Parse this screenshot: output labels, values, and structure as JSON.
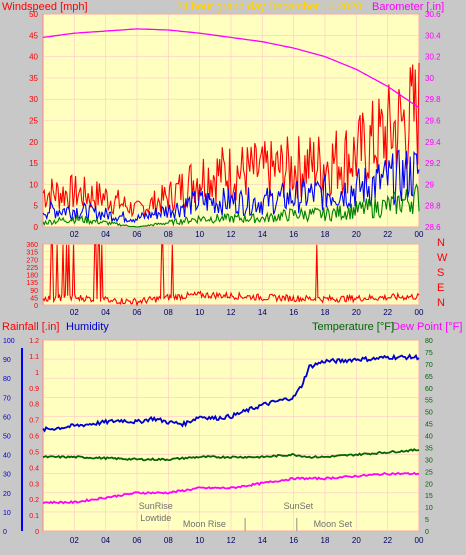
{
  "header": {
    "title": "24 hour graph day   December 16 2020",
    "left_label": "Windspeed [mph]",
    "right_label": "Barometer [.in]"
  },
  "colors": {
    "background": "#c8c8c8",
    "plot_bg": "#ffffc0",
    "wind_red": "#ff0000",
    "wind_blue": "#0000ff",
    "wind_green": "#008000",
    "barometer": "#ff00ff",
    "humidity": "#0000cc",
    "temperature": "#006600",
    "dewpoint": "#ff00ff",
    "title_yellow": "#ffd000"
  },
  "chart_data": [
    {
      "type": "line",
      "name": "wind_and_barometer",
      "x_ticks": [
        "02",
        "04",
        "06",
        "08",
        "10",
        "12",
        "14",
        "16",
        "18",
        "20",
        "22",
        "00"
      ],
      "left_axis": {
        "label": "Windspeed [mph]",
        "ylim": [
          0,
          50
        ],
        "ticks": [
          0,
          5,
          10,
          15,
          20,
          25,
          30,
          35,
          40,
          45,
          50
        ]
      },
      "right_axis": {
        "label": "Barometer [.in]",
        "ylim": [
          28.6,
          30.6
        ],
        "ticks": [
          "28.6",
          "28.8",
          "29",
          "29.2",
          "29.4",
          "29.6",
          "29.8",
          "30",
          "30.2",
          "30.4",
          "30.6"
        ]
      },
      "series": [
        {
          "kind": "wind_gust",
          "color": "#ff0000",
          "hours": [
            0,
            2,
            4,
            6,
            8,
            10,
            12,
            14,
            16,
            18,
            20,
            22,
            24
          ],
          "values": [
            8,
            8,
            7,
            4,
            7,
            12,
            13,
            13,
            14,
            15,
            17,
            22,
            27
          ]
        },
        {
          "kind": "wind_avg",
          "color": "#0000ff",
          "hours": [
            0,
            2,
            4,
            6,
            8,
            10,
            12,
            14,
            16,
            18,
            20,
            22,
            24
          ],
          "values": [
            4,
            4,
            3,
            2,
            4,
            6,
            6,
            6,
            7,
            8,
            9,
            11,
            13
          ]
        },
        {
          "kind": "wind_low",
          "color": "#008000",
          "hours": [
            0,
            2,
            4,
            6,
            8,
            10,
            12,
            14,
            16,
            18,
            20,
            22,
            24
          ],
          "values": [
            1,
            2,
            1,
            0,
            1,
            2,
            2,
            2,
            3,
            3,
            4,
            5,
            7
          ]
        },
        {
          "kind": "barometer",
          "color": "#ff00ff",
          "hours": [
            0,
            2,
            4,
            6,
            8,
            10,
            12,
            14,
            16,
            18,
            20,
            22,
            24
          ],
          "values": [
            30.38,
            30.42,
            30.44,
            30.46,
            30.45,
            30.42,
            30.38,
            30.34,
            30.28,
            30.2,
            30.08,
            29.92,
            29.72
          ]
        }
      ]
    },
    {
      "type": "scatter",
      "name": "wind_direction",
      "x_ticks": [
        "02",
        "04",
        "06",
        "08",
        "10",
        "12",
        "14",
        "16",
        "18",
        "20",
        "22",
        "00"
      ],
      "axis": {
        "ylim": [
          0,
          360
        ],
        "ticks": [
          0,
          45,
          90,
          135,
          180,
          225,
          270,
          315,
          360
        ]
      },
      "compass": [
        "N",
        "W",
        "S",
        "E",
        "N"
      ],
      "series": [
        {
          "kind": "direction",
          "color": "#ff0000",
          "hours": [
            0,
            2,
            4,
            6,
            8,
            10,
            12,
            14,
            16,
            18,
            20,
            22,
            24
          ],
          "values": [
            40,
            45,
            30,
            20,
            45,
            60,
            55,
            45,
            40,
            35,
            40,
            45,
            50
          ]
        }
      ]
    },
    {
      "type": "line",
      "name": "rain_humidity_temperature",
      "x_ticks": [
        "02",
        "04",
        "06",
        "08",
        "10",
        "12",
        "14",
        "16",
        "18",
        "20",
        "22",
        "00"
      ],
      "left_labels": {
        "rain": "Rainfall [.in]",
        "humidity": "Humidity"
      },
      "right_labels": {
        "temperature": "Temperature [°F]",
        "dewpoint": "Dew Point [°F]"
      },
      "rain_axis": {
        "ylim": [
          0,
          1.2
        ],
        "ticks": [
          "0",
          "0.1",
          "0.2",
          "0.3",
          "0.4",
          "0.5",
          "0.6",
          "0.7",
          "0.8",
          "0.9",
          "1",
          "1.1",
          "1.2"
        ]
      },
      "humidity_axis": {
        "ylim": [
          0,
          100
        ],
        "ticks": [
          0,
          10,
          20,
          30,
          40,
          50,
          60,
          70,
          80,
          90,
          100
        ]
      },
      "temp_axis": {
        "ylim": [
          0,
          80
        ],
        "ticks": [
          0,
          5,
          10,
          15,
          20,
          25,
          30,
          35,
          40,
          45,
          50,
          55,
          60,
          65,
          70,
          75,
          80
        ]
      },
      "series": [
        {
          "kind": "humidity",
          "color": "#0000cc",
          "hours": [
            0,
            1,
            2,
            3,
            4,
            5,
            6,
            7,
            8,
            9,
            10,
            11,
            12,
            13,
            14,
            15,
            16,
            16.5,
            17,
            18,
            19,
            20,
            21,
            22,
            23,
            24
          ],
          "values": [
            53,
            54,
            55,
            56,
            57,
            58,
            57,
            59,
            57,
            56,
            60,
            59,
            60,
            63,
            66,
            68,
            70,
            76,
            86,
            89,
            89,
            90,
            90,
            91,
            91,
            91
          ]
        },
        {
          "kind": "temperature",
          "color": "#006600",
          "hours": [
            0,
            2,
            4,
            6,
            8,
            10,
            12,
            14,
            16,
            17,
            18,
            20,
            22,
            24
          ],
          "values": [
            31,
            31,
            30.5,
            30,
            30,
            31,
            31,
            31,
            32,
            31,
            31,
            32,
            33,
            34
          ]
        },
        {
          "kind": "dewpoint",
          "color": "#ff00ff",
          "hours": [
            0,
            2,
            4,
            6,
            8,
            10,
            12,
            14,
            16,
            18,
            20,
            22,
            24
          ],
          "values": [
            12,
            12,
            14,
            16,
            16,
            18,
            18,
            20,
            22,
            22,
            23,
            24,
            24
          ]
        }
      ],
      "annotations": [
        {
          "text": "SunRise",
          "hour": 7.2
        },
        {
          "text": "Lowtide",
          "hour": 7.2
        },
        {
          "text": "Moon Rise",
          "hour": 10.3
        },
        {
          "text": "SunSet",
          "hour": 16.3
        },
        {
          "text": "Moon Set",
          "hour": 18.5
        }
      ]
    }
  ]
}
